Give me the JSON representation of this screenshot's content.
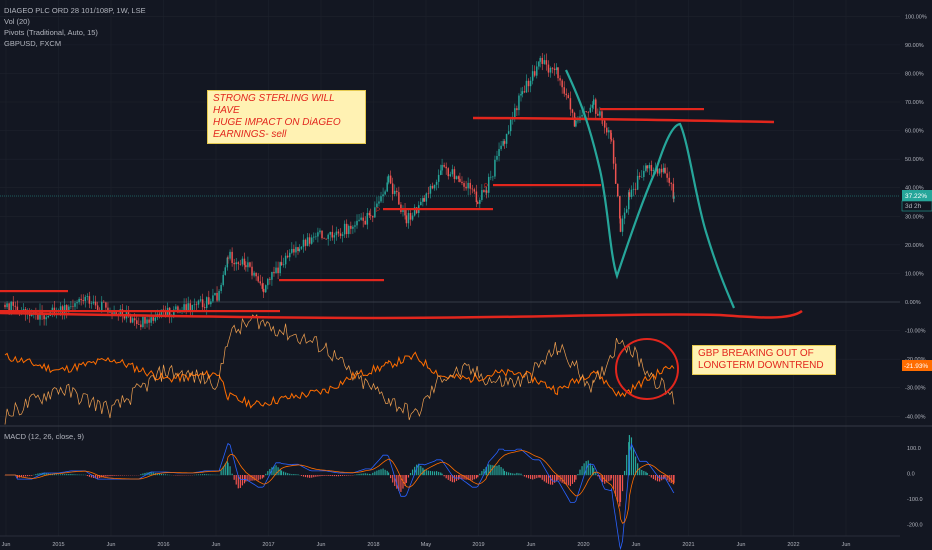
{
  "legends": {
    "symbol": "DIAGEO PLC ORD 28 101/108P, 1W, LSE",
    "volume": "Vol (20)",
    "pivots": "Pivots (Traditional, Auto, 15)",
    "compare": "GBPUSD, FXCM",
    "macd": "MACD (12, 26, close, 9)"
  },
  "annotations": {
    "left": [
      "STRONG STERLING WILL HAVE",
      "HUGE IMPACT ON DiAGEO",
      "EARNINGS- sell"
    ],
    "right": [
      "GBP BREAKING OUT OF",
      "LONGTERM DOWNTREND"
    ]
  },
  "badges": {
    "price_pct": "37.22%",
    "price_time": "3d 2h",
    "gbp_pct": "-21.93%"
  },
  "colors": {
    "background": "#131722",
    "up": "#26a69a",
    "down": "#ef5350",
    "drawing_red": "#e2261d",
    "projection": "#26a69a",
    "compare_orange": "#ff6d00",
    "compare_thin": "#f0a050",
    "macd_line": "#2962ff",
    "signal_line": "#ff6d00",
    "annotation_bg": "#fff2b3"
  },
  "chart_data": {
    "type": "line",
    "title": "DIAGEO PLC ORD 28 101/108P, 1W, LSE",
    "x_ticks": [
      "Jun",
      "2015",
      "Jun",
      "2016",
      "Jun",
      "2017",
      "Jun",
      "2018",
      "May",
      "2019",
      "Jun",
      "2020",
      "Jun",
      "2021",
      "Jun",
      "2022",
      "Jun"
    ],
    "y_ticks_pct": [
      "100.00%",
      "90.00%",
      "80.00%",
      "70.00%",
      "60.00%",
      "50.00%",
      "40.00%",
      "30.00%",
      "20.00%",
      "10.00%",
      "0.00%",
      "-10.00%",
      "-20.00%",
      "-30.00%",
      "-40.00%"
    ],
    "macd_ticks": [
      "100.0",
      "0.0",
      "-100.0",
      "-200.0"
    ],
    "ylim_pct": [
      -40,
      100
    ],
    "grid": true,
    "series": [
      {
        "name": "DIAGEO PLC ORD 28 101/108P",
        "points": [
          [
            "2014-06",
            -1
          ],
          [
            "2014-09",
            -5
          ],
          [
            "2014-12",
            -3
          ],
          [
            "2015-03",
            1
          ],
          [
            "2015-06",
            -3
          ],
          [
            "2015-09",
            -7
          ],
          [
            "2015-12",
            -4
          ],
          [
            "2016-03",
            -2
          ],
          [
            "2016-06",
            2
          ],
          [
            "2016-07",
            16
          ],
          [
            "2016-09",
            13
          ],
          [
            "2016-11",
            5
          ],
          [
            "2017-01",
            13
          ],
          [
            "2017-03",
            20
          ],
          [
            "2017-06",
            24
          ],
          [
            "2017-09",
            26
          ],
          [
            "2017-11",
            30
          ],
          [
            "2018-01",
            43
          ],
          [
            "2018-03",
            29
          ],
          [
            "2018-05",
            36
          ],
          [
            "2018-07",
            46
          ],
          [
            "2018-09",
            44
          ],
          [
            "2018-11",
            36
          ],
          [
            "2018-12",
            40
          ],
          [
            "2019-02",
            57
          ],
          [
            "2019-04",
            74
          ],
          [
            "2019-06",
            84
          ],
          [
            "2019-08",
            80
          ],
          [
            "2019-10",
            62
          ],
          [
            "2019-12",
            69
          ],
          [
            "2020-01",
            64
          ],
          [
            "2020-02",
            58
          ],
          [
            "2020-03",
            25
          ],
          [
            "2020-04",
            38
          ],
          [
            "2020-06",
            47
          ],
          [
            "2020-08",
            45
          ],
          [
            "2020-09",
            37
          ]
        ]
      },
      {
        "name": "GBPUSD, FXCM",
        "points": [
          [
            "2014-06",
            -19
          ],
          [
            "2014-12",
            -24
          ],
          [
            "2015-06",
            -20
          ],
          [
            "2015-12",
            -27
          ],
          [
            "2016-06",
            -25
          ],
          [
            "2016-07",
            -33
          ],
          [
            "2016-10",
            -36
          ],
          [
            "2017-01",
            -34
          ],
          [
            "2017-06",
            -31
          ],
          [
            "2017-09",
            -26
          ],
          [
            "2018-01",
            -22
          ],
          [
            "2018-04",
            -19
          ],
          [
            "2018-07",
            -26
          ],
          [
            "2018-10",
            -27
          ],
          [
            "2019-01",
            -25
          ],
          [
            "2019-04",
            -25
          ],
          [
            "2019-08",
            -31
          ],
          [
            "2019-12",
            -24
          ],
          [
            "2020-03",
            -33
          ],
          [
            "2020-06",
            -27
          ],
          [
            "2020-09",
            -22
          ]
        ]
      }
    ]
  }
}
